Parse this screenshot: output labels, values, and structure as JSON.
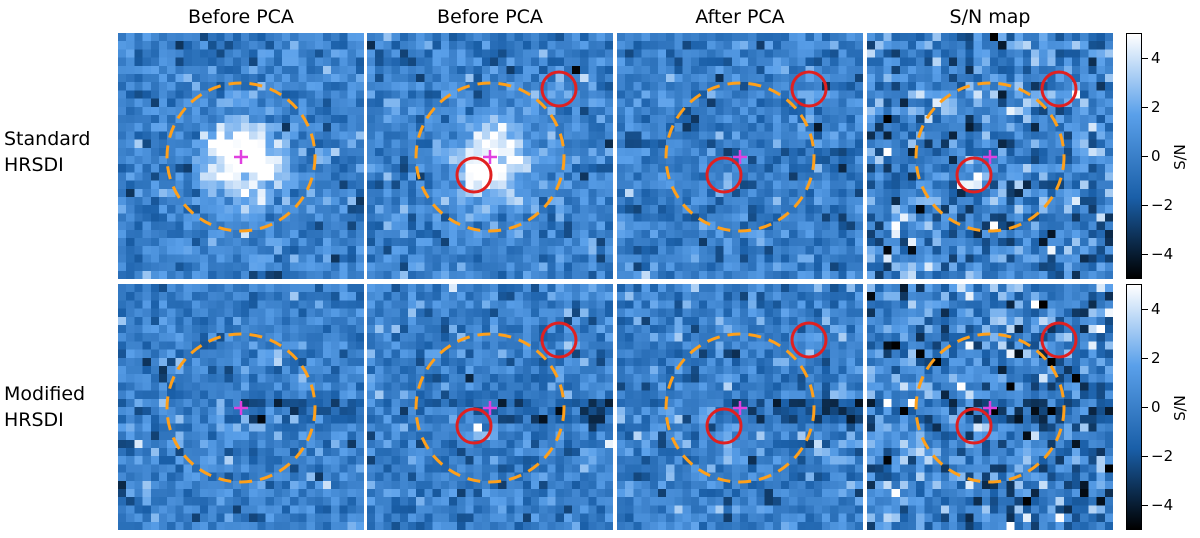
{
  "figure": {
    "column_titles": [
      "Before PCA",
      "Before PCA",
      "After PCA",
      "S/N map"
    ],
    "row_labels": [
      {
        "line1": "Standard",
        "line2": "HRSDI"
      },
      {
        "line1": "Modified",
        "line2": "HRSDI"
      }
    ],
    "colorbar": {
      "label": "S/N",
      "range": [
        -5,
        5
      ],
      "ticks": [
        "4",
        "2",
        "0",
        "−2",
        "−4"
      ],
      "tick_values": [
        4,
        2,
        0,
        -2,
        -4
      ],
      "colors": [
        "#000000",
        "#1a5fa8",
        "#5aa0ea",
        "#ffffff"
      ]
    },
    "marker_colors": {
      "aperture": "#ffa01a",
      "planet_circle": "#e02020",
      "star_cross": "#e040e0"
    }
  }
}
